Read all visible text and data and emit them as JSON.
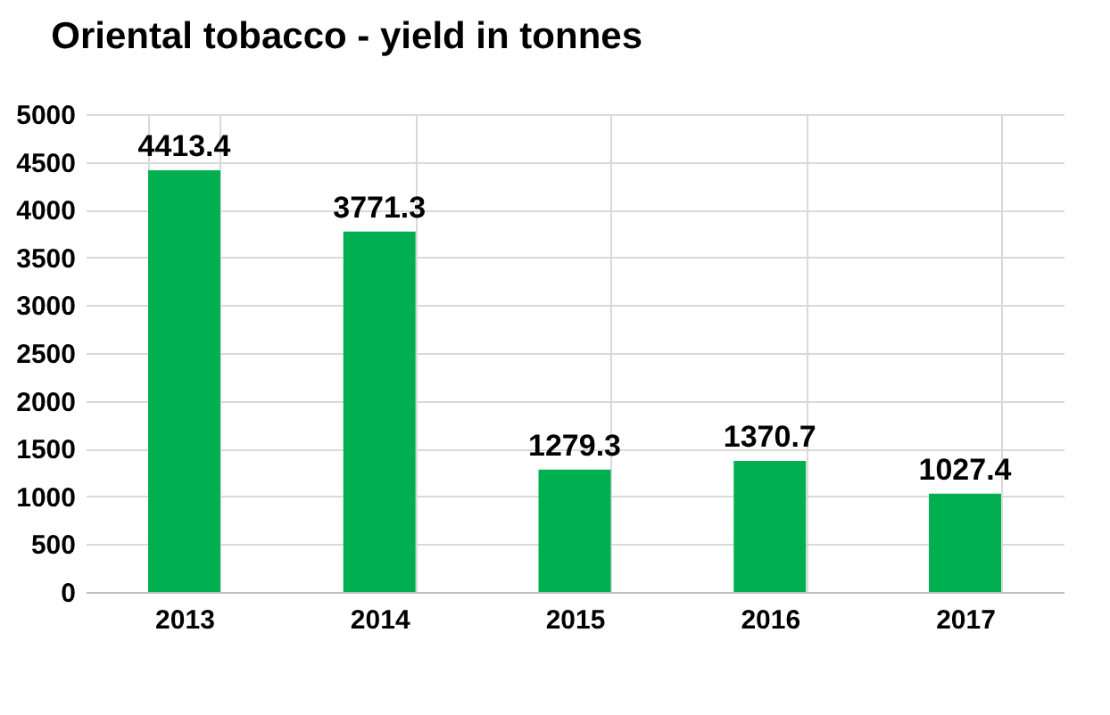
{
  "chart_data": {
    "type": "bar",
    "title": "Oriental tobacco - yield in tonnes",
    "categories": [
      "2013",
      "2014",
      "2015",
      "2016",
      "2017"
    ],
    "values": [
      4413.4,
      3771.3,
      1279.3,
      1370.7,
      1027.4
    ],
    "color": "#00b050",
    "ylim": [
      0,
      5000
    ],
    "yticks": [
      0,
      500,
      1000,
      1500,
      2000,
      2500,
      3000,
      3500,
      4000,
      4500,
      5000
    ],
    "grid": true,
    "data_labels": true
  }
}
